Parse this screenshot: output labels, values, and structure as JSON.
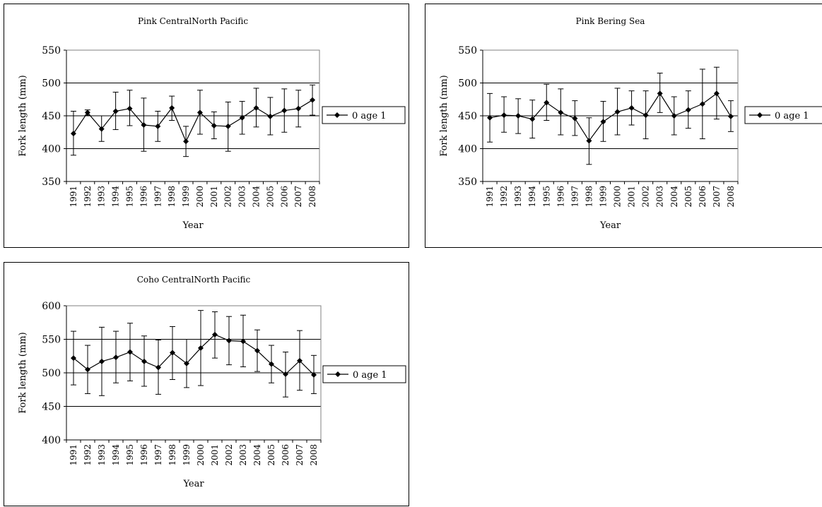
{
  "legend_entry": "0 age 1",
  "colors": {
    "line": "#000000",
    "background": "#ffffff",
    "gridline": "#000000"
  },
  "chart_data": [
    {
      "type": "line",
      "title": "Pink CentralNorth Pacific",
      "xlabel": "Year",
      "ylabel": "Fork length (mm)",
      "ylim": [
        350,
        550
      ],
      "yticks": [
        350,
        400,
        450,
        500,
        550
      ],
      "grid": "horizontal",
      "legend": "right",
      "categories": [
        "1991",
        "1992",
        "1993",
        "1994",
        "1995",
        "1996",
        "1997",
        "1998",
        "1999",
        "2000",
        "2001",
        "2002",
        "2003",
        "2004",
        "2005",
        "2006",
        "2007",
        "2008"
      ],
      "series": [
        {
          "name": "0 age 1",
          "values": [
            423,
            455,
            430,
            457,
            461,
            436,
            434,
            462,
            411,
            455,
            435,
            434,
            447,
            462,
            449,
            458,
            461,
            474
          ],
          "error_low": [
            390,
            451,
            411,
            429,
            435,
            396,
            411,
            443,
            388,
            422,
            415,
            396,
            422,
            433,
            421,
            425,
            433,
            451
          ],
          "error_high": [
            457,
            459,
            450,
            486,
            489,
            477,
            457,
            480,
            434,
            489,
            456,
            471,
            472,
            492,
            478,
            491,
            489,
            497
          ]
        }
      ]
    },
    {
      "type": "line",
      "title": "Pink Bering Sea",
      "xlabel": "Year",
      "ylabel": "Fork length (mm)",
      "ylim": [
        350,
        550
      ],
      "yticks": [
        350,
        400,
        450,
        500,
        550
      ],
      "grid": "horizontal",
      "legend": "right",
      "categories": [
        "1991",
        "1992",
        "1993",
        "1994",
        "1995",
        "1996",
        "1997",
        "1998",
        "1999",
        "2000",
        "2001",
        "2002",
        "2003",
        "2004",
        "2005",
        "2006",
        "2007",
        "2008"
      ],
      "series": [
        {
          "name": "0 age 1",
          "values": [
            447,
            451,
            450,
            445,
            470,
            455,
            446,
            412,
            441,
            456,
            462,
            451,
            484,
            450,
            459,
            468,
            484,
            449
          ],
          "error_low": [
            410,
            425,
            423,
            416,
            443,
            421,
            420,
            376,
            411,
            421,
            436,
            415,
            455,
            421,
            431,
            415,
            445,
            426
          ],
          "error_high": [
            484,
            479,
            476,
            474,
            498,
            491,
            473,
            447,
            472,
            492,
            488,
            488,
            515,
            479,
            488,
            521,
            524,
            473
          ]
        }
      ]
    },
    {
      "type": "line",
      "title": "Coho CentralNorth Pacific",
      "xlabel": "Year",
      "ylabel": "Fork length (mm)",
      "ylim": [
        400,
        600
      ],
      "yticks": [
        400,
        450,
        500,
        550,
        600
      ],
      "grid": "horizontal",
      "legend": "right",
      "categories": [
        "1991",
        "1992",
        "1993",
        "1994",
        "1995",
        "1996",
        "1997",
        "1998",
        "1999",
        "2000",
        "2001",
        "2002",
        "2003",
        "2004",
        "2005",
        "2006",
        "2007",
        "2008"
      ],
      "series": [
        {
          "name": "0 age 1",
          "values": [
            522,
            505,
            517,
            523,
            531,
            517,
            508,
            530,
            514,
            537,
            557,
            548,
            547,
            533,
            513,
            498,
            518,
            497
          ],
          "error_low": [
            482,
            469,
            466,
            485,
            488,
            480,
            468,
            490,
            478,
            481,
            522,
            512,
            509,
            502,
            485,
            464,
            474,
            469
          ],
          "error_high": [
            562,
            541,
            568,
            562,
            574,
            555,
            549,
            569,
            550,
            593,
            591,
            584,
            586,
            564,
            541,
            531,
            563,
            526
          ]
        }
      ]
    }
  ]
}
